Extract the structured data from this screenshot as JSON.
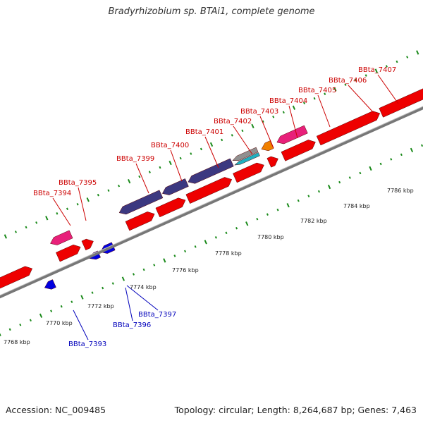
{
  "title": "Bradyrhizobium sp. BTAi1, complete genome",
  "footer": {
    "accession": "Accession: NC_009485",
    "summary": "Topology: circular; Length: 8,264,687 bp; Genes: 7,463"
  },
  "colors": {
    "forward_label": "#cc0000",
    "reverse_label": "#0000bb",
    "gene_red": "#ee0000",
    "gene_pink": "#e8207a",
    "gene_purple": "#3c3880",
    "gene_blue": "#0000e0",
    "gene_orange": "#f08000",
    "gene_gray": "#909090",
    "gene_teal": "#20b0c0",
    "backbone": "#777777",
    "tick_green": "#1a8a1a"
  },
  "scale_labels": [
    "7768 kbp",
    "7770 kbp",
    "7772 kbp",
    "7774 kbp",
    "7776 kbp",
    "7778 kbp",
    "7780 kbp",
    "7782 kbp",
    "7784 kbp",
    "7786 kbp"
  ],
  "genes_forward": [
    "BBta_7394",
    "BBta_7395",
    "BBta_7399",
    "BBta_7400",
    "BBta_7401",
    "BBta_7402",
    "BBta_7403",
    "BBta_7404",
    "BBta_7405",
    "BBta_7406",
    "BBta_7407"
  ],
  "genes_reverse": [
    "BBta_7393",
    "BBta_7396",
    "BBta_7397"
  ]
}
